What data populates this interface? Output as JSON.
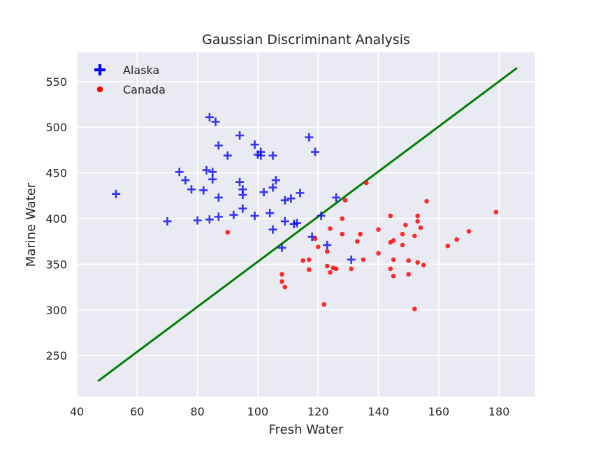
{
  "chart_data": {
    "type": "scatter",
    "title": "Gaussian Discriminant Analysis",
    "xlabel": "Fresh Water",
    "ylabel": "Marine Water",
    "xlim": [
      40,
      192
    ],
    "ylim": [
      205,
      582
    ],
    "xticks": [
      40,
      60,
      80,
      100,
      120,
      140,
      160,
      180
    ],
    "yticks": [
      250,
      300,
      350,
      400,
      450,
      500,
      550
    ],
    "grid": true,
    "legend_position": "top-left",
    "colors": {
      "background": "#eaeaf2",
      "grid": "#ffffff",
      "alaska": "#0000ff",
      "canada": "#ff0000",
      "boundary": "#008000"
    },
    "legend": [
      {
        "label": "Alaska",
        "marker": "plus",
        "color": "#0000ff"
      },
      {
        "label": "Canada",
        "marker": "dot",
        "color": "#ff0000"
      }
    ],
    "series": [
      {
        "name": "Alaska",
        "marker": "plus",
        "points": [
          [
            53,
            427
          ],
          [
            70,
            397
          ],
          [
            74,
            451
          ],
          [
            76,
            442
          ],
          [
            78,
            432
          ],
          [
            80,
            398
          ],
          [
            82,
            431
          ],
          [
            83,
            453
          ],
          [
            84,
            511
          ],
          [
            84,
            399
          ],
          [
            85,
            451
          ],
          [
            85,
            443
          ],
          [
            86,
            506
          ],
          [
            87,
            480
          ],
          [
            87,
            423
          ],
          [
            87,
            402
          ],
          [
            90,
            469
          ],
          [
            92,
            404
          ],
          [
            94,
            491
          ],
          [
            94,
            440
          ],
          [
            95,
            432
          ],
          [
            95,
            426
          ],
          [
            95,
            411
          ],
          [
            99,
            481
          ],
          [
            99,
            403
          ],
          [
            100,
            470
          ],
          [
            101,
            473
          ],
          [
            101,
            469
          ],
          [
            102,
            429
          ],
          [
            104,
            406
          ],
          [
            105,
            469
          ],
          [
            105,
            434
          ],
          [
            105,
            388
          ],
          [
            106,
            442
          ],
          [
            108,
            368
          ],
          [
            109,
            420
          ],
          [
            109,
            397
          ],
          [
            111,
            422
          ],
          [
            112,
            394
          ],
          [
            113,
            395
          ],
          [
            114,
            428
          ],
          [
            117,
            489
          ],
          [
            118,
            380
          ],
          [
            119,
            473
          ],
          [
            121,
            403
          ],
          [
            123,
            371
          ],
          [
            126,
            423
          ],
          [
            131,
            355
          ]
        ]
      },
      {
        "name": "Canada",
        "marker": "dot",
        "points": [
          [
            90,
            385
          ],
          [
            108,
            339
          ],
          [
            108,
            331
          ],
          [
            109,
            325
          ],
          [
            115,
            354
          ],
          [
            117,
            355
          ],
          [
            117,
            344
          ],
          [
            119,
            378
          ],
          [
            120,
            369
          ],
          [
            122,
            306
          ],
          [
            123,
            348
          ],
          [
            123,
            364
          ],
          [
            124,
            389
          ],
          [
            124,
            341
          ],
          [
            125,
            346
          ],
          [
            126,
            345
          ],
          [
            128,
            383
          ],
          [
            128,
            400
          ],
          [
            129,
            420
          ],
          [
            131,
            345
          ],
          [
            133,
            375
          ],
          [
            134,
            383
          ],
          [
            135,
            355
          ],
          [
            136,
            439
          ],
          [
            140,
            362
          ],
          [
            140,
            388
          ],
          [
            144,
            403
          ],
          [
            144,
            374
          ],
          [
            144,
            345
          ],
          [
            145,
            376
          ],
          [
            145,
            355
          ],
          [
            145,
            337
          ],
          [
            148,
            383
          ],
          [
            148,
            371
          ],
          [
            149,
            393
          ],
          [
            150,
            354
          ],
          [
            150,
            339
          ],
          [
            152,
            381
          ],
          [
            152,
            301
          ],
          [
            153,
            403
          ],
          [
            153,
            397
          ],
          [
            153,
            352
          ],
          [
            154,
            390
          ],
          [
            155,
            349
          ],
          [
            156,
            419
          ],
          [
            163,
            370
          ],
          [
            166,
            377
          ],
          [
            170,
            386
          ],
          [
            179,
            407
          ]
        ]
      }
    ],
    "decision_boundary": {
      "type": "line",
      "x": [
        47,
        186
      ],
      "y": [
        222,
        565
      ]
    }
  }
}
